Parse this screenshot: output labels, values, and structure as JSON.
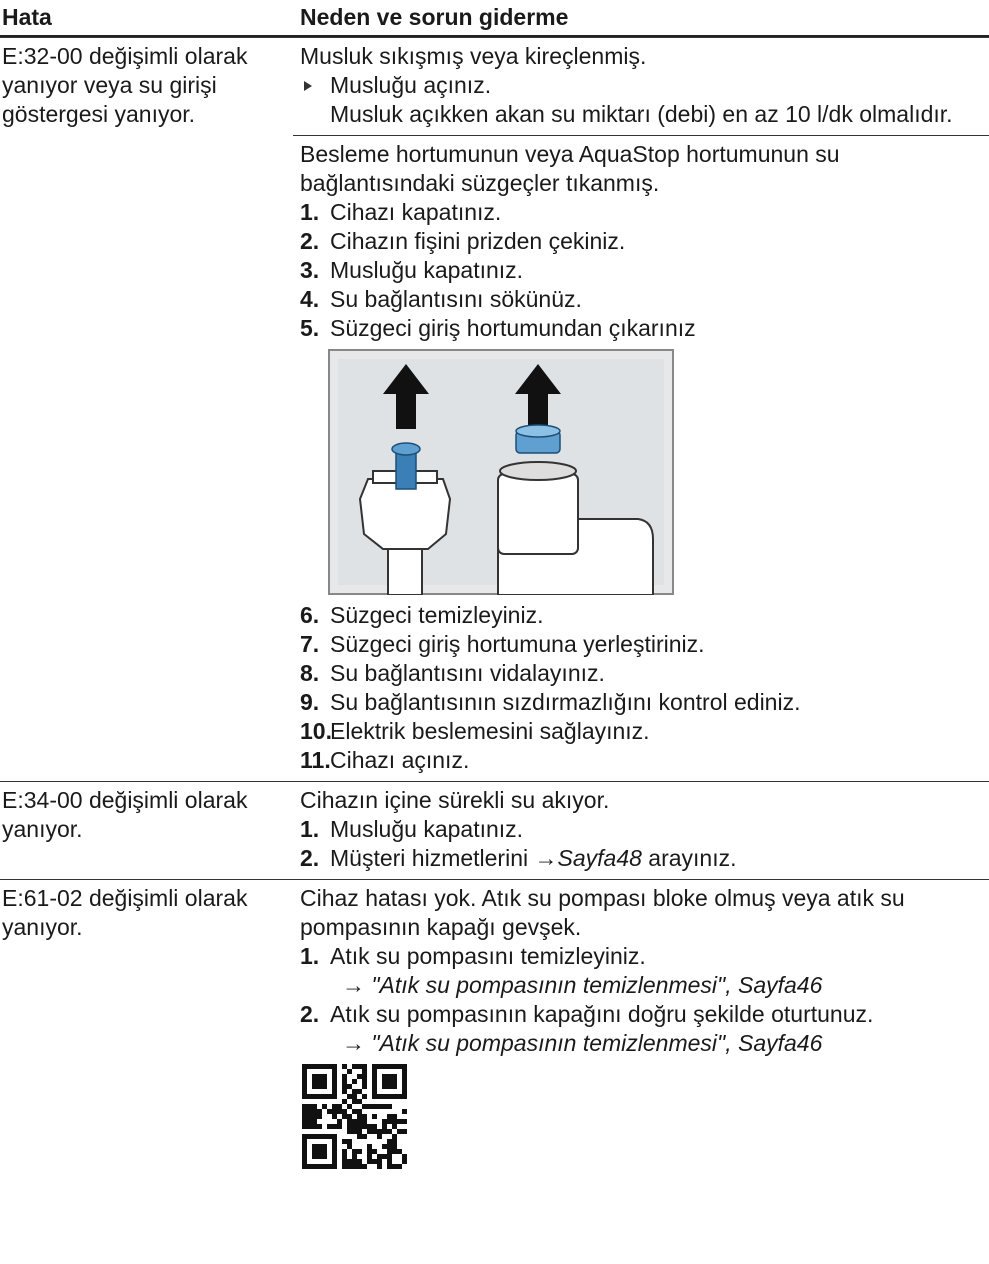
{
  "header": {
    "col1": "Hata",
    "col2": "Neden ve sorun giderme"
  },
  "rows": [
    {
      "error": "E:32-00 değişimli olarak yanıyor veya su girişi göstergesi yanıyor.",
      "causes": [
        {
          "cause": "Musluk sıkışmış veya kireçlenmiş.",
          "bullet": "Musluğu açınız.",
          "note": "Musluk açıkken akan su miktarı (debi) en az 10 l/dk olmalıdır."
        },
        {
          "cause": "Besleme hortumunun veya AquaStop hortumunun su bağlantısındaki süzgeçler tıkanmış.",
          "steps": [
            {
              "num": "1.",
              "text": "Cihazı kapatınız."
            },
            {
              "num": "2.",
              "text": "Cihazın fişini prizden çekiniz."
            },
            {
              "num": "3.",
              "text": "Musluğu kapatınız."
            },
            {
              "num": "4.",
              "text": "Su bağlantısını sökünüz."
            },
            {
              "num": "5.",
              "text": "Süzgeci giriş hortumundan çıkarınız"
            }
          ],
          "steps_after_figure": [
            {
              "num": "6.",
              "text": "Süzgeci temizleyiniz."
            },
            {
              "num": "7.",
              "text": "Süzgeci giriş hortumuna yerleştiriniz."
            },
            {
              "num": "8.",
              "text": "Su bağlantısını vidalayınız."
            },
            {
              "num": "9.",
              "text": "Su bağlantısının sızdırmazlığını kontrol ediniz."
            },
            {
              "num": "10.",
              "text": "Elektrik beslemesini sağlayınız."
            },
            {
              "num": "11.",
              "text": "Cihazı açınız."
            }
          ]
        }
      ]
    },
    {
      "error": "E:34-00 değişimli olarak yanıyor.",
      "cause": "Cihazın içine sürekli su akıyor.",
      "steps": [
        {
          "num": "1.",
          "text": "Musluğu kapatınız."
        },
        {
          "num": "2.",
          "text": "Müşteri hizmetlerini",
          "arrow": "→",
          "link": "Sayfa48",
          "after": "arayınız."
        }
      ]
    },
    {
      "error": "E:61-02 değişimli olarak yanıyor.",
      "cause": "Cihaz hatası yok. Atık su pompası bloke olmuş veya atık su pompasının kapağı gevşek.",
      "steps": [
        {
          "num": "1.",
          "text": "Atık su pompasını temizleyiniz.",
          "arrow": "→",
          "ref": "\"Atık su pompasının temizlenmesi\", Sayfa46"
        },
        {
          "num": "2.",
          "text": "Atık su pompasının kapağını doğru şekilde oturtunuz.",
          "arrow": "→",
          "ref": "\"Atık su pompasının temizlenmesi\", Sayfa46"
        }
      ]
    }
  ]
}
